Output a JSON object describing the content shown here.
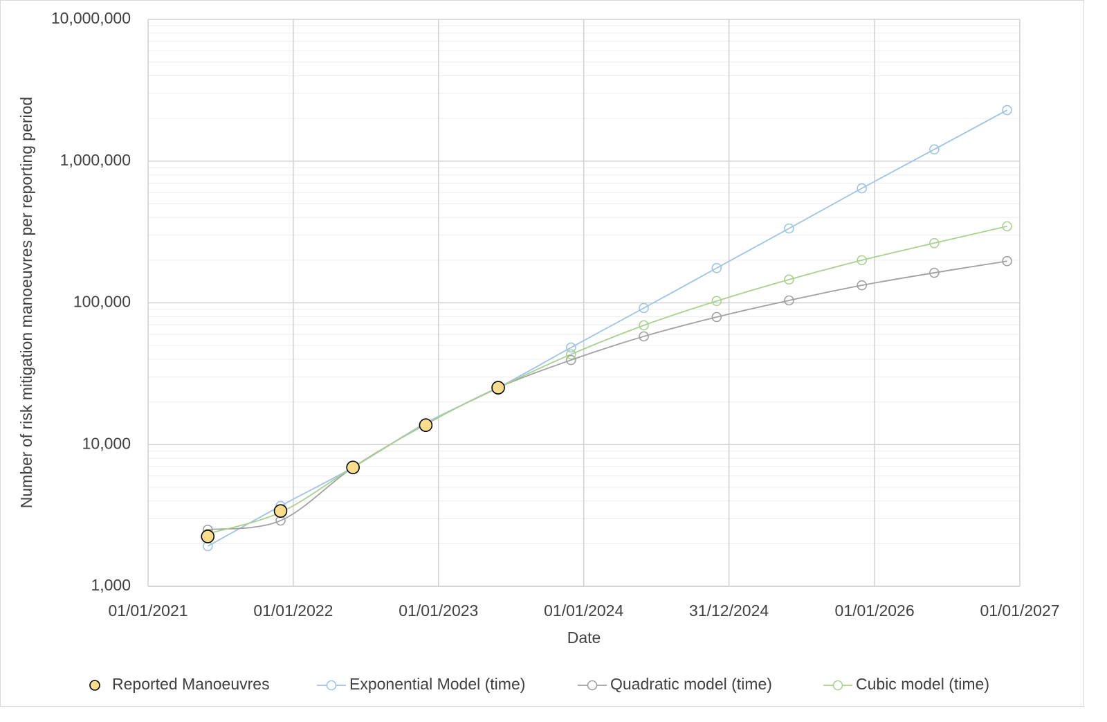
{
  "chart_data": {
    "type": "line",
    "y_label": "Number of risk mitigation manoeuvres per reporting period",
    "x_label": "Date",
    "x": [
      "2021-05-31",
      "2021-11-30",
      "2022-05-31",
      "2022-11-30",
      "2023-05-31",
      "2023-11-30",
      "2024-05-31",
      "2024-11-30",
      "2025-05-31",
      "2025-11-30",
      "2026-05-31",
      "2026-11-30"
    ],
    "xlim": [
      "2021-01-01",
      "2027-01-01"
    ],
    "xticks": [
      {
        "value": "2021-01-01",
        "label": "01/01/2021"
      },
      {
        "value": "2022-01-01",
        "label": "01/01/2022"
      },
      {
        "value": "2023-01-01",
        "label": "01/01/2023"
      },
      {
        "value": "2024-01-01",
        "label": "01/01/2024"
      },
      {
        "value": "2024-12-31",
        "label": "31/12/2024"
      },
      {
        "value": "2026-01-01",
        "label": "01/01/2026"
      },
      {
        "value": "2027-01-01",
        "label": "01/01/2027"
      }
    ],
    "ylim": [
      1000,
      10000000
    ],
    "yticks": [
      {
        "value": 1000,
        "label": "1,000"
      },
      {
        "value": 10000,
        "label": "10,000"
      },
      {
        "value": 100000,
        "label": "100,000"
      },
      {
        "value": 1000000,
        "label": "1,000,000"
      },
      {
        "value": 10000000,
        "label": "10,000,000"
      }
    ],
    "log_scale": true,
    "grid": true,
    "minor_grid": true,
    "legend": "bottom",
    "series": [
      {
        "name": "Reported Manoeuvres",
        "color": "#f9dc8c",
        "line": false,
        "values": [
          2250,
          3400,
          6900,
          13700,
          25200,
          null,
          null,
          null,
          null,
          null,
          null,
          null
        ]
      },
      {
        "name": "Exponential Model (time)",
        "color": "#9dc3e6",
        "line": true,
        "values": [
          1920,
          3690,
          6900,
          14200,
          25200,
          48400,
          91900,
          176000,
          335000,
          643000,
          1210000,
          2290000
        ]
      },
      {
        "name": "Quadratic model (time)",
        "color": "#a0a0a0",
        "line": true,
        "values": [
          2510,
          2910,
          6900,
          13900,
          25200,
          39500,
          58000,
          79400,
          104000,
          133000,
          163000,
          197000
        ]
      },
      {
        "name": "Cubic model (time)",
        "color": "#a9d18e",
        "line": true,
        "values": [
          2350,
          3330,
          6900,
          14000,
          25200,
          43300,
          69400,
          103000,
          146000,
          200000,
          264000,
          347000
        ]
      }
    ]
  }
}
